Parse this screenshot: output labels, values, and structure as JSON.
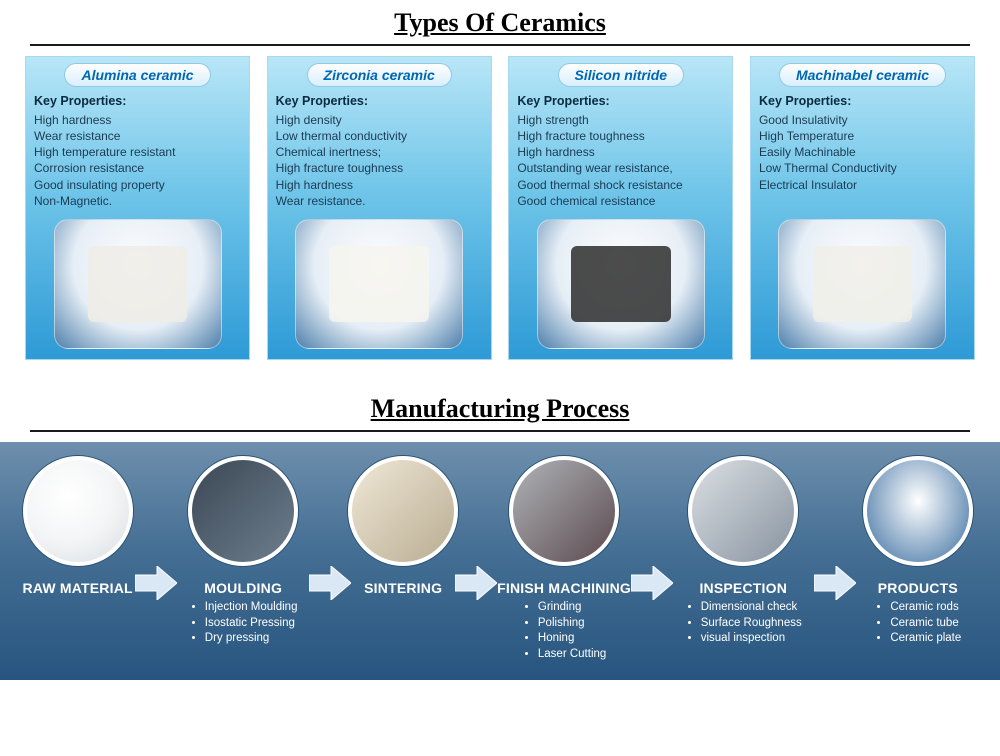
{
  "colors": {
    "title_text": "#000000",
    "rule": "#1a1a1a",
    "card_bg_top": "#b8e6f7",
    "card_bg_mid": "#6fc5e9",
    "card_bg_bot": "#2e9ad6",
    "header_text": "#0067b3",
    "body_text": "#1b3a52",
    "strip_top": "#6e8fad",
    "strip_mid": "#456f94",
    "strip_bot": "#27557f",
    "arrow_fill": "#d9e8f4",
    "arrow_stroke": "#ffffff",
    "circle_border": "#ffffff"
  },
  "typography": {
    "section_title_pt": 26,
    "card_header_pt": 14,
    "card_body_pt": 12,
    "step_title_pt": 14,
    "step_sub_pt": 11.5
  },
  "section1": {
    "title": "Types Of Ceramics",
    "key_properties_label": "Key Properties:",
    "cards": [
      {
        "header": "Alumina ceramic",
        "swatch_color": "#efece6",
        "properties": [
          "High hardness",
          "Wear resistance",
          "High temperature resistant",
          "Corrosion resistance",
          "Good insulating property",
          "Non-Magnetic."
        ]
      },
      {
        "header": "Zirconia ceramic",
        "swatch_color": "#f6f4ef",
        "properties": [
          "High density",
          "Low thermal conductivity",
          "Chemical inertness;",
          "High fracture toughness",
          "High hardness",
          "Wear resistance."
        ]
      },
      {
        "header": "Silicon nitride",
        "swatch_color": "#2d2d2d",
        "properties": [
          "High strength",
          "High fracture toughness",
          "High hardness",
          "Outstanding wear resistance,",
          "Good thermal shock resistance",
          "Good chemical resistance"
        ]
      },
      {
        "header": "Machinabel ceramic",
        "swatch_color": "#f0eee9",
        "properties": [
          "Good Insulativity",
          "High Temperature",
          "Easily Machinable",
          "Low Thermal Conductivity",
          "Electrical Insulator"
        ]
      }
    ]
  },
  "section2": {
    "title": "Manufacturing Process",
    "steps": [
      {
        "title": "RAW  MATERIAL",
        "circle_class": "raw-img",
        "w": "w-raw",
        "sub": []
      },
      {
        "title": "MOULDING",
        "circle_class": "mould-img",
        "w": "w-mould",
        "sub": [
          "Injection Moulding",
          "Isostatic Pressing",
          "Dry pressing"
        ]
      },
      {
        "title": "SINTERING",
        "circle_class": "sinter-img",
        "w": "w-sinter",
        "sub": []
      },
      {
        "title": "FINISH MACHINING",
        "circle_class": "mach-img",
        "w": "w-mach",
        "sub": [
          "Grinding",
          "Polishing",
          "Honing",
          "Laser Cutting"
        ]
      },
      {
        "title": "INSPECTION",
        "circle_class": "insp-img",
        "w": "w-insp",
        "sub": [
          "Dimensional check",
          "Surface Roughness",
          "visual inspection"
        ]
      },
      {
        "title": "PRODUCTS",
        "circle_class": "prod-img",
        "w": "w-prod",
        "sub": [
          "Ceramic rods",
          "Ceramic tube",
          "Ceramic plate"
        ]
      }
    ]
  }
}
